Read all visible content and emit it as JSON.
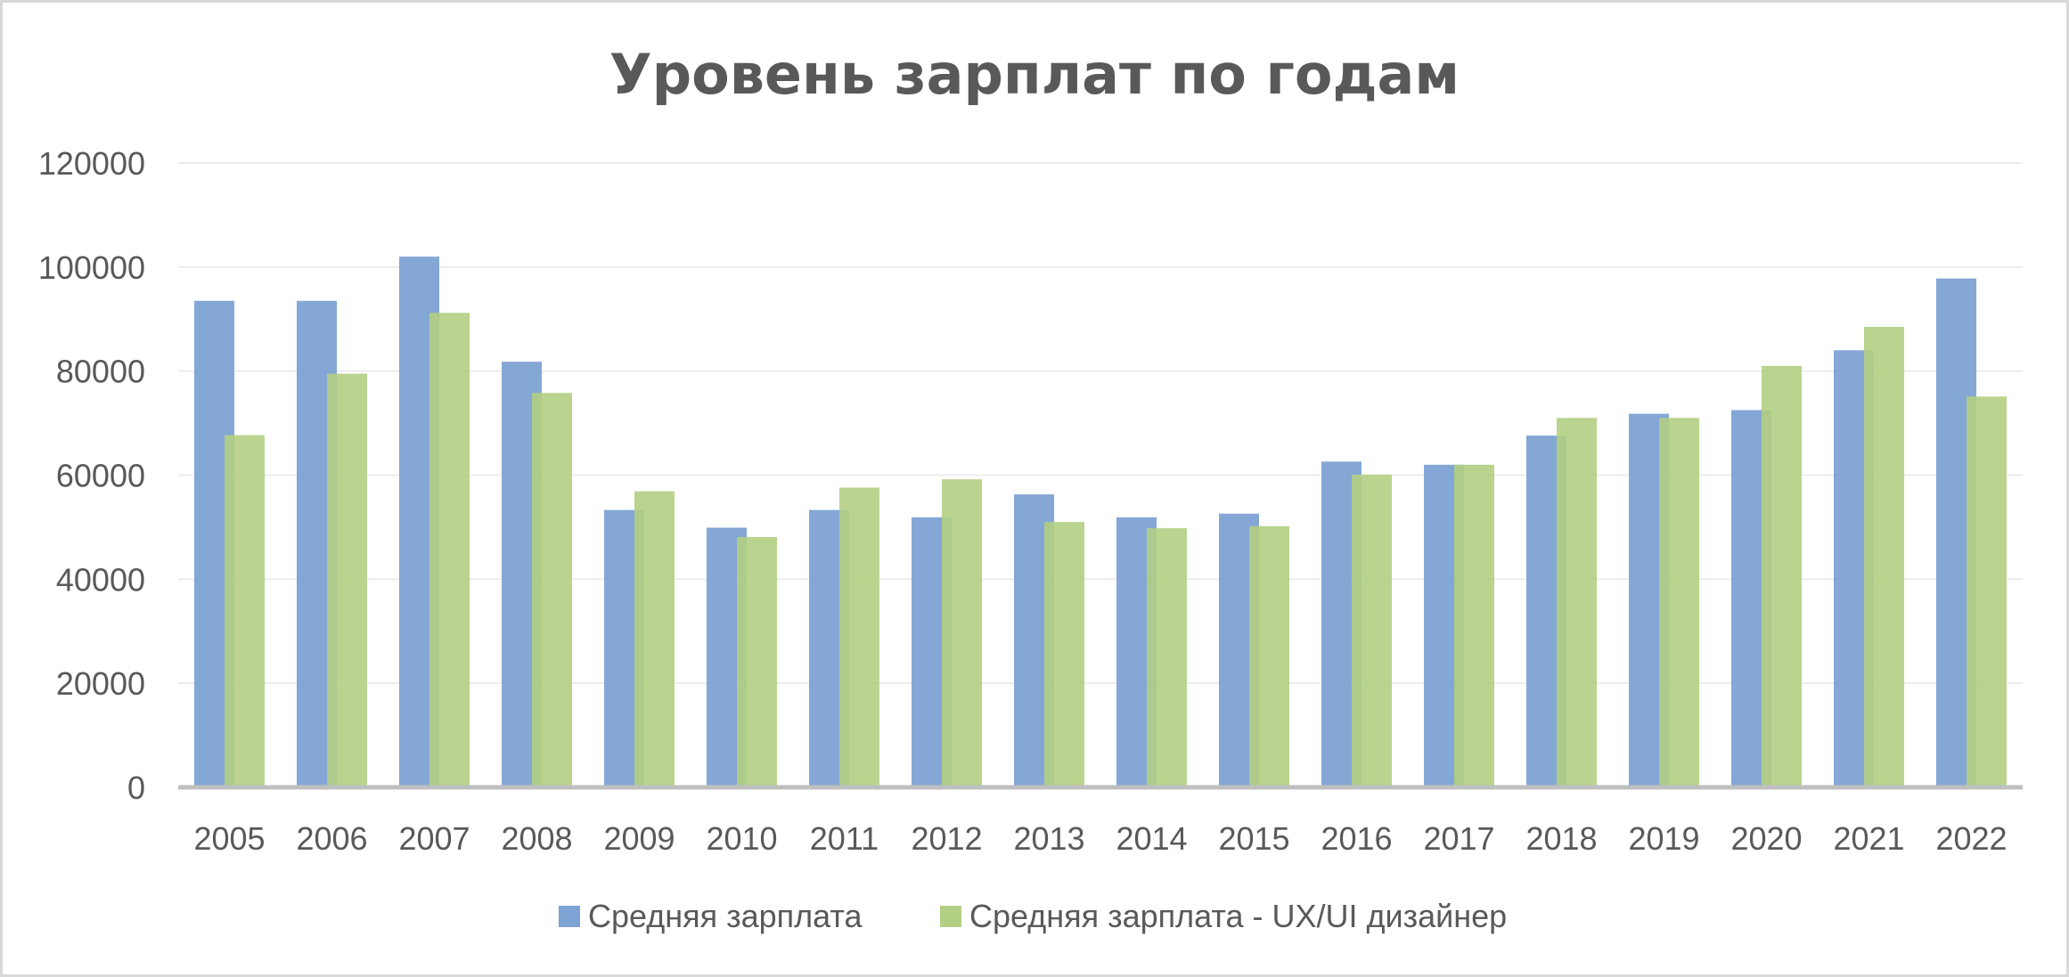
{
  "chart_data": {
    "type": "bar",
    "title": "Уровень зарплат по годам",
    "xlabel": "",
    "ylabel": "",
    "categories": [
      "2005",
      "2006",
      "2007",
      "2008",
      "2009",
      "2010",
      "2011",
      "2012",
      "2013",
      "2014",
      "2015",
      "2016",
      "2017",
      "2018",
      "2019",
      "2020",
      "2021",
      "2022"
    ],
    "ylim": [
      0,
      120000
    ],
    "yticks": [
      "0",
      "20000",
      "40000",
      "60000",
      "80000",
      "100000",
      "120000"
    ],
    "grid": true,
    "legend_position": "bottom",
    "series": [
      {
        "name": "Средняя зарплата",
        "color": "#7da2d4",
        "values": [
          93500,
          93500,
          102000,
          81800,
          53300,
          49900,
          53300,
          51900,
          56300,
          51900,
          52600,
          62600,
          62000,
          67600,
          71800,
          72500,
          84000,
          97800
        ]
      },
      {
        "name": "Средняя зарплата - UX/UI дизайнер",
        "color": "#b3cf83",
        "values": [
          67700,
          79500,
          91200,
          75800,
          56900,
          48100,
          57600,
          59200,
          51000,
          49800,
          50200,
          60100,
          62000,
          71000,
          71000,
          81000,
          88500,
          75100
        ]
      }
    ]
  }
}
